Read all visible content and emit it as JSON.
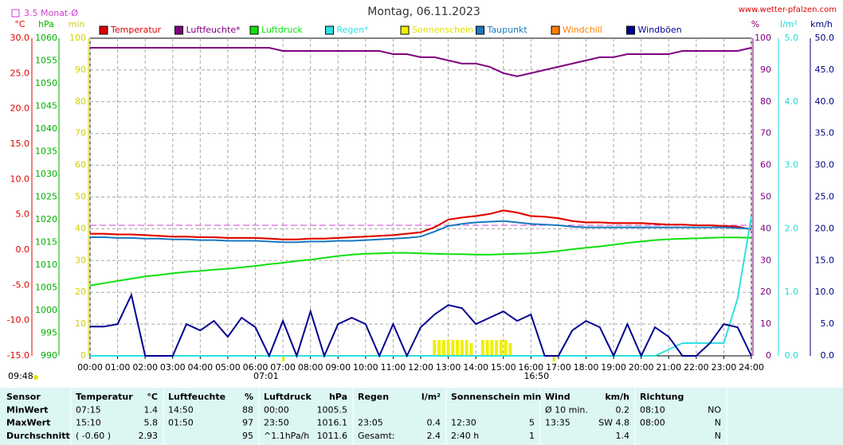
{
  "chart_data": {
    "type": "line",
    "title": "Montag, 06.11.2023",
    "source": "www.wetter-pfalzen.com",
    "monthly_mean": {
      "value": 3.5,
      "label": "3.5 Monat-Ø",
      "color": "#d040d0"
    },
    "sun": {
      "duration": "09:48",
      "rise": {
        "value": 7.017,
        "label": "07:01"
      },
      "set": {
        "value": 16.833,
        "label": "16:50"
      }
    },
    "grid": true,
    "grid_axis": 3,
    "xlim": [
      0,
      24
    ],
    "xticks": [
      {
        "value": 0,
        "label": "00:00"
      },
      {
        "value": 1,
        "label": "01:00"
      },
      {
        "value": 2,
        "label": "02:00"
      },
      {
        "value": 3,
        "label": "03:00"
      },
      {
        "value": 4,
        "label": "04:00"
      },
      {
        "value": 5,
        "label": "05:00"
      },
      {
        "value": 6,
        "label": "06:00"
      },
      {
        "value": 7,
        "label": "07:00"
      },
      {
        "value": 8,
        "label": "08:00"
      },
      {
        "value": 9,
        "label": "09:00"
      },
      {
        "value": 10,
        "label": "10:00"
      },
      {
        "value": 11,
        "label": "11:00"
      },
      {
        "value": 12,
        "label": "12:00"
      },
      {
        "value": 13,
        "label": "13:00"
      },
      {
        "value": 14,
        "label": "14:00"
      },
      {
        "value": 15,
        "label": "15:00"
      },
      {
        "value": 16,
        "label": "16:00"
      },
      {
        "value": 17,
        "label": "17:00"
      },
      {
        "value": 18,
        "label": "18:00"
      },
      {
        "value": 19,
        "label": "19:00"
      },
      {
        "value": 20,
        "label": "20:00"
      },
      {
        "value": 21,
        "label": "21:00"
      },
      {
        "value": 22,
        "label": "22:00"
      },
      {
        "value": 23,
        "label": "23:00"
      },
      {
        "value": 24,
        "label": "24:00"
      }
    ],
    "y_axes": [
      {
        "unit": "°C",
        "color": "#e00000",
        "lim": [
          -15,
          30
        ],
        "ticks": [
          {
            "value": -15,
            "label": "-15.0"
          },
          {
            "value": -10,
            "label": "-10.0"
          },
          {
            "value": -5,
            "label": "-5.0"
          },
          {
            "value": 0,
            "label": "0.0"
          },
          {
            "value": 5,
            "label": "5.0"
          },
          {
            "value": 10,
            "label": "10.0"
          },
          {
            "value": 15,
            "label": "15.0"
          },
          {
            "value": 20,
            "label": "20.0"
          },
          {
            "value": 25,
            "label": "25.0"
          },
          {
            "value": 30,
            "label": "30.0"
          }
        ]
      },
      {
        "unit": "hPa",
        "color": "#00b000",
        "lim": [
          990,
          1060
        ],
        "ticks": [
          990,
          995,
          1000,
          1005,
          1010,
          1015,
          1020,
          1025,
          1030,
          1035,
          1040,
          1045,
          1050,
          1055,
          1060
        ]
      },
      {
        "unit": "min",
        "color": "#d0d000",
        "lim": [
          0,
          100
        ],
        "ticks": [
          0,
          10,
          20,
          30,
          40,
          50,
          60,
          70,
          80,
          90,
          100
        ]
      },
      {
        "unit": "%",
        "color": "#800080",
        "lim": [
          0,
          100
        ],
        "ticks": [
          0,
          10,
          20,
          30,
          40,
          50,
          60,
          70,
          80,
          90,
          100
        ]
      },
      {
        "unit": "l/m²",
        "color": "#20d8d8",
        "lim": [
          0,
          5
        ],
        "ticks": [
          {
            "value": 0,
            "label": "0.0"
          },
          {
            "value": 1,
            "label": "1.0"
          },
          {
            "value": 2,
            "label": "2.0"
          },
          {
            "value": 3,
            "label": "3.0"
          },
          {
            "value": 4,
            "label": "4.0"
          },
          {
            "value": 5,
            "label": "5.0"
          }
        ]
      },
      {
        "unit": "km/h",
        "color": "#000080",
        "lim": [
          0,
          50
        ],
        "ticks": [
          {
            "value": 0,
            "label": "0.0"
          },
          {
            "value": 5,
            "label": "5.0"
          },
          {
            "value": 10,
            "label": "10.0"
          },
          {
            "value": 15,
            "label": "15.0"
          },
          {
            "value": 20,
            "label": "20.0"
          },
          {
            "value": 25,
            "label": "25.0"
          },
          {
            "value": 30,
            "label": "30.0"
          },
          {
            "value": 35,
            "label": "35.0"
          },
          {
            "value": 40,
            "label": "40.0"
          },
          {
            "value": 45,
            "label": "45.0"
          },
          {
            "value": 50,
            "label": "50.0"
          }
        ]
      }
    ],
    "x": [
      0,
      0.5,
      1,
      1.5,
      2,
      2.5,
      3,
      3.5,
      4,
      4.5,
      5,
      5.5,
      6,
      6.5,
      7,
      7.5,
      8,
      8.5,
      9,
      9.5,
      10,
      10.5,
      11,
      11.5,
      12,
      12.5,
      13,
      13.5,
      14,
      14.5,
      15,
      15.5,
      16,
      16.5,
      17,
      17.5,
      18,
      18.5,
      19,
      19.5,
      20,
      20.5,
      21,
      21.5,
      22,
      22.5,
      23,
      23.5,
      24
    ],
    "series": [
      {
        "name": "Temperatur",
        "color": "#e00000",
        "axis": 0,
        "values": [
          2.3,
          2.3,
          2.2,
          2.2,
          2.1,
          2.0,
          1.9,
          1.9,
          1.8,
          1.8,
          1.7,
          1.7,
          1.7,
          1.6,
          1.5,
          1.5,
          1.6,
          1.6,
          1.7,
          1.8,
          1.9,
          2.0,
          2.1,
          2.3,
          2.5,
          3.2,
          4.3,
          4.6,
          4.8,
          5.1,
          5.6,
          5.3,
          4.8,
          4.7,
          4.5,
          4.1,
          3.9,
          3.9,
          3.8,
          3.8,
          3.8,
          3.7,
          3.6,
          3.6,
          3.5,
          3.5,
          3.4,
          3.3,
          2.9
        ]
      },
      {
        "name": "Luftfeuchte*",
        "color": "#800080",
        "axis": 3,
        "values": [
          97,
          97,
          97,
          97,
          97,
          97,
          97,
          97,
          97,
          97,
          97,
          97,
          97,
          97,
          96,
          96,
          96,
          96,
          96,
          96,
          96,
          96,
          95,
          95,
          94,
          94,
          93,
          92,
          92,
          91,
          89,
          88,
          89,
          90,
          91,
          92,
          93,
          94,
          94,
          95,
          95,
          95,
          95,
          96,
          96,
          96,
          96,
          96,
          97
        ]
      },
      {
        "name": "Luftdruck",
        "color": "#10e010",
        "axis": 1,
        "values": [
          1005.5,
          1006.0,
          1006.5,
          1007.0,
          1007.5,
          1007.8,
          1008.2,
          1008.5,
          1008.7,
          1009.0,
          1009.2,
          1009.5,
          1009.8,
          1010.2,
          1010.5,
          1010.9,
          1011.2,
          1011.6,
          1012.0,
          1012.3,
          1012.5,
          1012.6,
          1012.7,
          1012.7,
          1012.6,
          1012.5,
          1012.4,
          1012.4,
          1012.3,
          1012.3,
          1012.4,
          1012.5,
          1012.6,
          1012.8,
          1013.1,
          1013.5,
          1013.8,
          1014.1,
          1014.5,
          1014.9,
          1015.2,
          1015.5,
          1015.7,
          1015.8,
          1015.9,
          1016.0,
          1016.1,
          1016.1,
          1016.0
        ]
      },
      {
        "name": "Regen*",
        "color": "#30e0e0",
        "axis": 4,
        "values": [
          0,
          0,
          0,
          0,
          0,
          0,
          0,
          0,
          0,
          0,
          0,
          0,
          0,
          0,
          0,
          0,
          0,
          0,
          0,
          0,
          0,
          0,
          0,
          0,
          0,
          0,
          0,
          0,
          0,
          0,
          0,
          0,
          0,
          0,
          0,
          0,
          0,
          0,
          0,
          0,
          0,
          0,
          0.1,
          0.2,
          0.2,
          0.2,
          0.2,
          0.9,
          2.2
        ]
      },
      {
        "name": "Sonnenschein",
        "color": "#f0f000",
        "axis": 2,
        "style": "bar",
        "x": [
          12.5,
          12.667,
          12.833,
          13.0,
          13.167,
          13.333,
          13.5,
          13.667,
          13.833,
          14.25,
          14.417,
          14.583,
          14.75,
          14.917,
          15.083,
          15.25
        ],
        "values": [
          5,
          5,
          5,
          5,
          5,
          5,
          5,
          5,
          4,
          5,
          5,
          5,
          5,
          5,
          5,
          4
        ]
      },
      {
        "name": "Taupunkt",
        "color": "#1878c0",
        "axis": 0,
        "values": [
          1.8,
          1.8,
          1.7,
          1.7,
          1.6,
          1.6,
          1.5,
          1.5,
          1.4,
          1.4,
          1.3,
          1.3,
          1.3,
          1.2,
          1.1,
          1.1,
          1.2,
          1.2,
          1.3,
          1.3,
          1.4,
          1.5,
          1.6,
          1.7,
          1.9,
          2.6,
          3.4,
          3.7,
          3.9,
          4.0,
          4.1,
          3.9,
          3.7,
          3.6,
          3.5,
          3.3,
          3.2,
          3.2,
          3.2,
          3.2,
          3.2,
          3.2,
          3.2,
          3.2,
          3.2,
          3.2,
          3.2,
          3.1,
          3.0
        ]
      },
      {
        "name": "Windchill",
        "color": "#ff8000",
        "axis": 0,
        "values": [
          2.3,
          2.3,
          2.2,
          2.2,
          2.1,
          2.0,
          1.9,
          1.9,
          1.8,
          1.8,
          1.7,
          1.7,
          1.7,
          1.6,
          1.5,
          1.5,
          1.6,
          1.6,
          1.7,
          1.8,
          1.9,
          2.0,
          2.1,
          2.3,
          2.5,
          3.2,
          4.3,
          4.6,
          4.8,
          5.1,
          5.6,
          5.3,
          4.8,
          4.7,
          4.5,
          4.1,
          3.9,
          3.9,
          3.8,
          3.8,
          3.8,
          3.7,
          3.6,
          3.6,
          3.5,
          3.5,
          3.4,
          3.3,
          2.9
        ]
      },
      {
        "name": "Windböen",
        "color": "#000090",
        "axis": 5,
        "values": [
          4.6,
          4.6,
          5.0,
          9.6,
          0,
          0,
          0,
          5.0,
          4.0,
          5.5,
          3.0,
          6.0,
          4.5,
          0,
          5.5,
          0,
          7.0,
          0,
          5.0,
          6.0,
          5.0,
          0,
          5.0,
          0,
          4.5,
          6.5,
          8.0,
          7.5,
          5.0,
          6.0,
          7.0,
          5.5,
          6.5,
          0,
          0,
          4.0,
          5.5,
          4.5,
          0,
          5.0,
          0,
          4.5,
          3.0,
          0,
          0,
          2.0,
          5.0,
          4.5,
          0
        ]
      }
    ]
  },
  "table": {
    "rows": [
      [
        "Sensor",
        "Temperatur",
        "°C",
        "Luftfeuchte",
        "%",
        "Luftdruck",
        "hPa",
        "Regen",
        "l/m²",
        "Sonnenschein min",
        null,
        "Wind",
        "km/h",
        "Richtung",
        null
      ],
      [
        "MinWert",
        "07:15",
        "1.4",
        "14:50",
        "88",
        "00:00",
        "1005.5",
        null,
        null,
        null,
        null,
        "Ø 10 min.",
        "0.2",
        "08:10",
        "NO"
      ],
      [
        "MaxWert",
        "15:10",
        "5.8",
        "01:50",
        "97",
        "23:50",
        "1016.1",
        "23:05",
        "0.4",
        "12:30",
        "5",
        "13:35",
        "SW 4.8",
        "08:00",
        "N"
      ],
      [
        "Durchschnitt",
        "( -0.60 )",
        "2.93",
        null,
        "95",
        "^1.1hPa/h",
        "1011.6",
        "Gesamt:",
        "2.4",
        "2:40 h",
        "1",
        null,
        "1.4",
        null,
        "N"
      ]
    ]
  }
}
